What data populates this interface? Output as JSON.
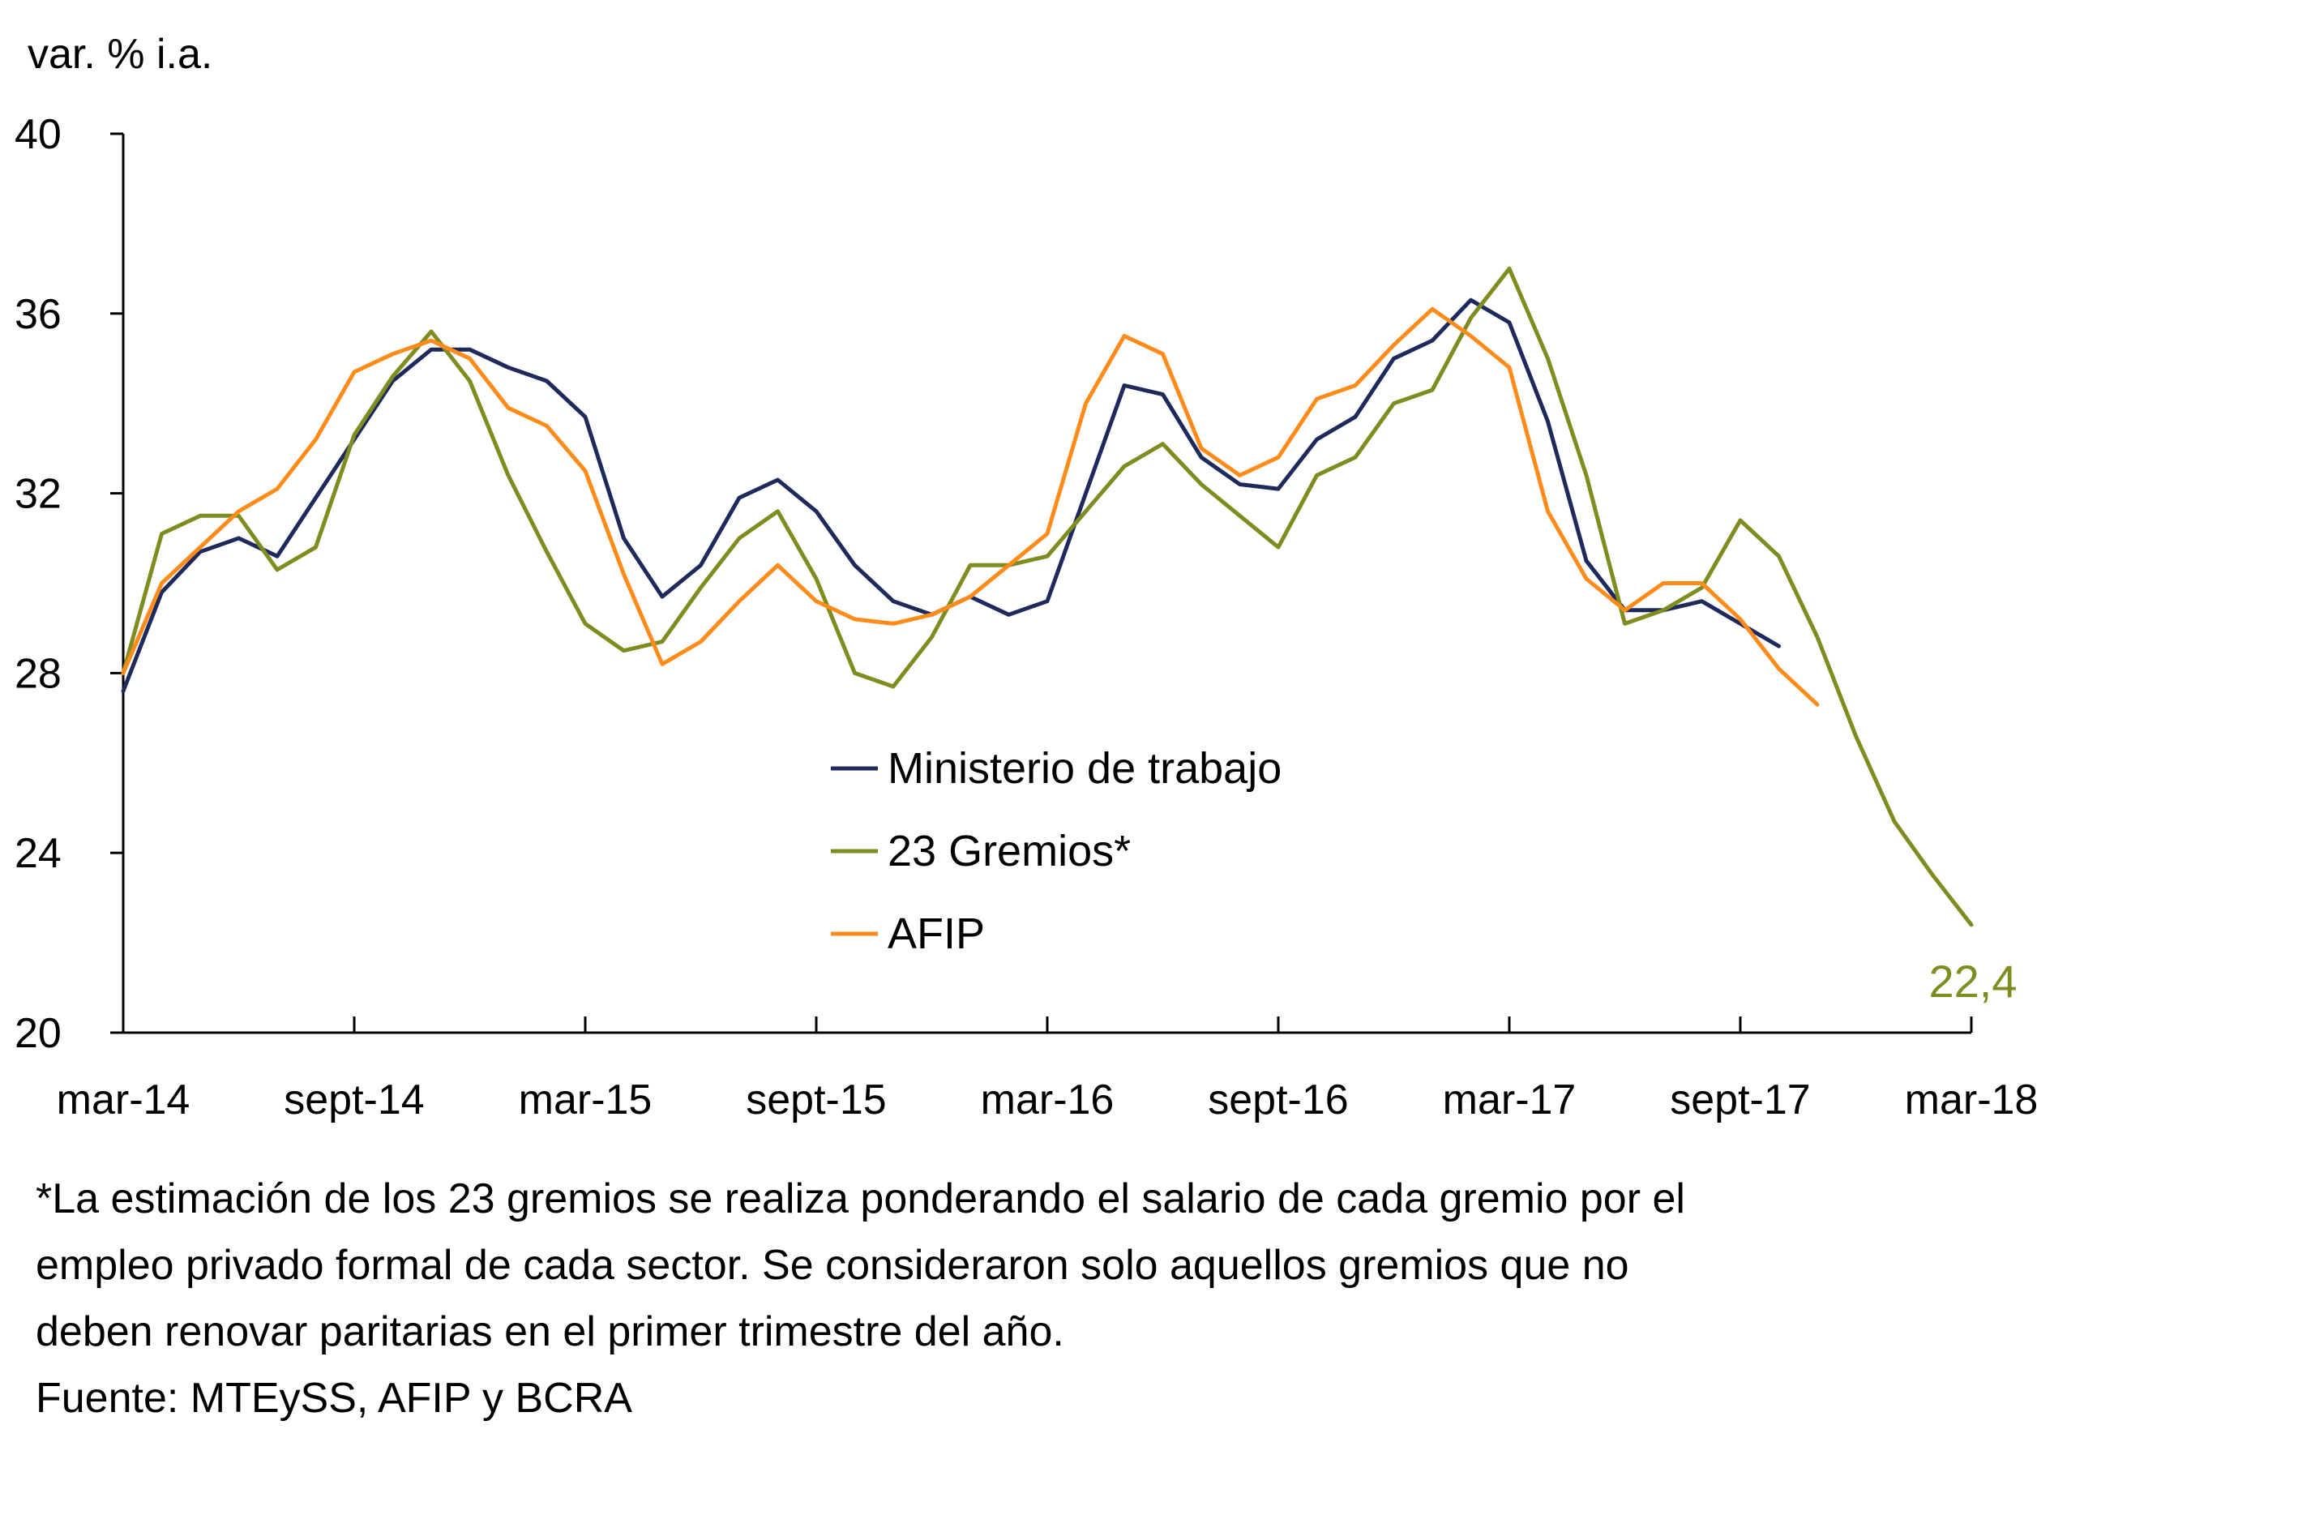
{
  "chart_data": {
    "type": "line",
    "ylabel": "var. % i.a.",
    "ylim": [
      20,
      40
    ],
    "yticks": [
      20,
      24,
      28,
      32,
      36,
      40
    ],
    "x_start": "mar-14",
    "x_end": "mar-18",
    "xtick_labels": [
      "mar-14",
      "sept-14",
      "mar-15",
      "sept-15",
      "mar-16",
      "sept-16",
      "mar-17",
      "sept-17",
      "mar-18"
    ],
    "series": [
      {
        "name": "Ministerio de trabajo",
        "color": "#1f2a5c",
        "values": [
          27.6,
          29.8,
          30.7,
          31.0,
          30.6,
          31.9,
          33.2,
          34.5,
          35.2,
          35.2,
          34.8,
          34.5,
          33.7,
          31.0,
          29.7,
          30.4,
          31.9,
          32.3,
          31.6,
          30.4,
          29.6,
          29.3,
          29.7,
          29.3,
          29.6,
          32.0,
          34.4,
          34.2,
          32.8,
          32.2,
          32.1,
          33.2,
          33.7,
          35.0,
          35.4,
          36.3,
          35.8,
          33.6,
          30.5,
          29.4,
          29.4,
          29.6,
          29.1,
          28.6
        ],
        "end_label": ""
      },
      {
        "name": "23 Gremios*",
        "color": "#7f8c1f",
        "values": [
          28.0,
          31.1,
          31.5,
          31.5,
          30.3,
          30.8,
          33.3,
          34.6,
          35.6,
          34.5,
          32.4,
          30.7,
          29.1,
          28.5,
          28.7,
          29.9,
          31.0,
          31.6,
          30.1,
          28.0,
          27.7,
          28.8,
          30.4,
          30.4,
          30.6,
          31.6,
          32.6,
          33.1,
          32.2,
          31.5,
          30.8,
          32.4,
          32.8,
          34.0,
          34.3,
          35.9,
          37.0,
          35.0,
          32.4,
          29.1,
          29.4,
          29.9,
          31.4,
          30.6,
          28.8,
          26.6,
          24.7,
          23.5,
          22.4
        ],
        "end_label": "22,4"
      },
      {
        "name": "AFIP",
        "color": "#ff8c1a",
        "values": [
          28.0,
          30.0,
          30.8,
          31.6,
          32.1,
          33.2,
          34.7,
          35.1,
          35.4,
          35.0,
          33.9,
          33.5,
          32.5,
          30.2,
          28.2,
          28.7,
          29.6,
          30.4,
          29.6,
          29.2,
          29.1,
          29.3,
          29.7,
          30.4,
          31.1,
          34.0,
          35.5,
          35.1,
          33.0,
          32.4,
          32.8,
          34.1,
          34.4,
          35.3,
          36.1,
          35.5,
          34.8,
          31.6,
          30.1,
          29.4,
          30.0,
          30.0,
          29.2,
          28.1,
          27.3
        ],
        "end_label": ""
      }
    ]
  },
  "notes": [
    "*La estimación de los 23 gremios se realiza ponderando el salario de cada gremio por el",
    "empleo privado formal de cada sector. Se consideraron solo aquellos gremios que no",
    "deben renovar paritarias en el primer trimestre del año.",
    "Fuente: MTEySS, AFIP y BCRA"
  ]
}
